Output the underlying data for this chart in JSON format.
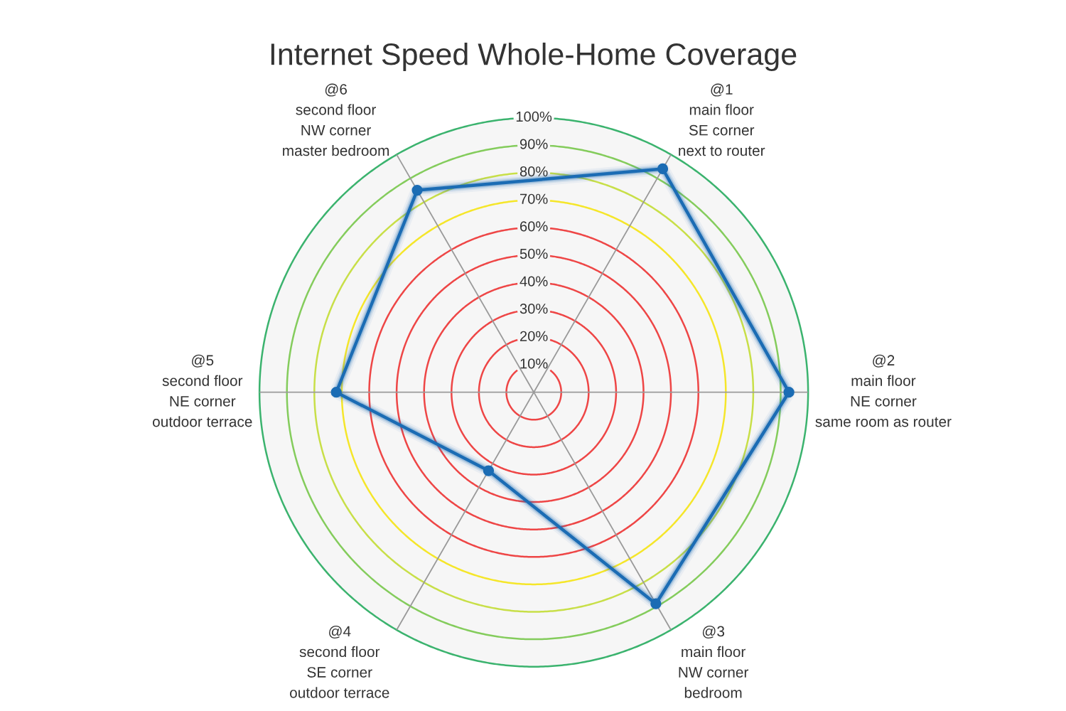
{
  "chart_data": {
    "type": "radar",
    "title": "Internet Speed Whole-Home Coverage",
    "categories": [
      "@1\nmain floor\nSE corner\nnext to router",
      "@2\nmain floor\nNE corner\nsame room as router",
      "@3\nmain floor\nNW corner\nbedroom",
      "@4\nsecond floor\nSE corner\noutdoor terrace",
      "@5\nsecond floor\nNE corner\noutdoor terrace",
      "@6\nsecond floor\nNW corner\nmaster bedroom"
    ],
    "series": [
      {
        "color": "#1b6cb4",
        "values": [
          94,
          93,
          89,
          33,
          72,
          85
        ]
      }
    ],
    "ylim": [
      0,
      100
    ],
    "yticks": [
      {
        "value": 10,
        "label": "10%"
      },
      {
        "value": 20,
        "label": "20%"
      },
      {
        "value": 30,
        "label": "30%"
      },
      {
        "value": 40,
        "label": "40%"
      },
      {
        "value": 50,
        "label": "50%"
      },
      {
        "value": 60,
        "label": "60%"
      },
      {
        "value": 70,
        "label": "70%"
      },
      {
        "value": 80,
        "label": "80%"
      },
      {
        "value": 90,
        "label": "90%"
      },
      {
        "value": 100,
        "label": "100%"
      }
    ],
    "grid": true,
    "marker": "circle",
    "line_style": "solid"
  }
}
